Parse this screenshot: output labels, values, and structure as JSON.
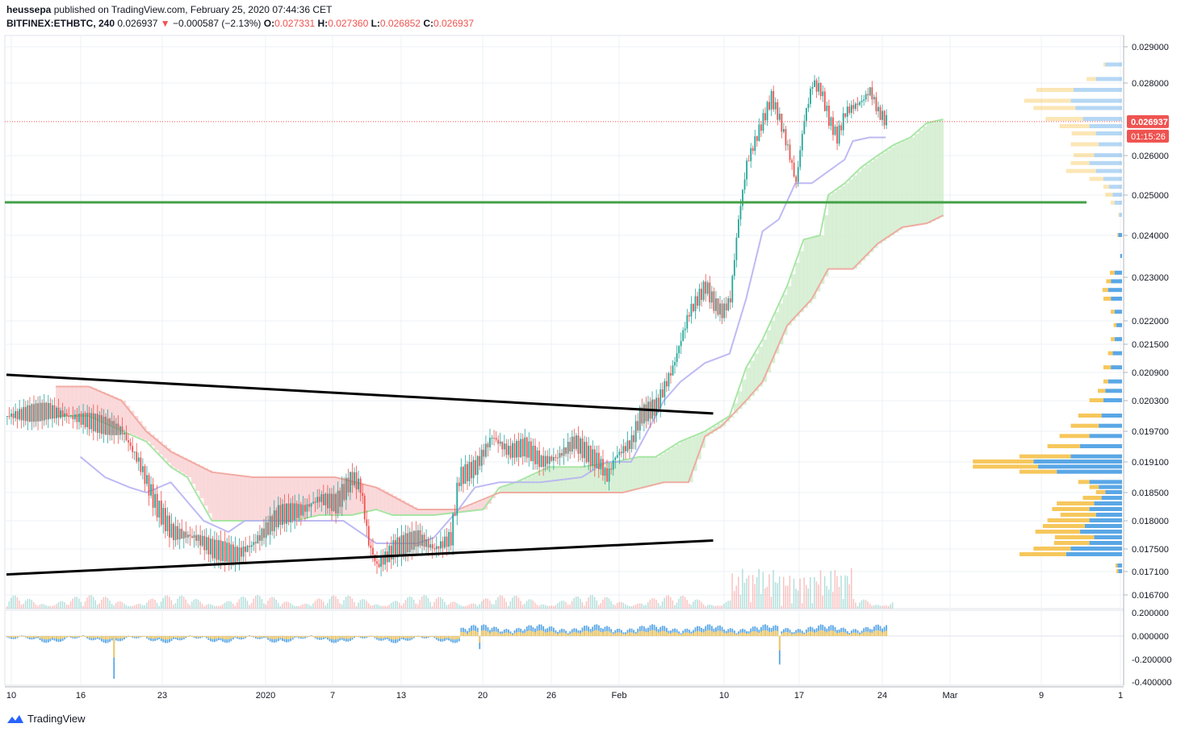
{
  "header": {
    "author": "heussepa",
    "published_text": "published on TradingView.com, February 25, 2020 07:44:36 CET",
    "symbol": "BITFINEX:ETHBTC, 240",
    "last": "0.026937",
    "change_arrow": "▼",
    "change": "−0.000587 (−2.13%)",
    "o_label": "O:",
    "o_value": "0.027331",
    "h_label": "H:",
    "h_value": "0.027360",
    "l_label": "L:",
    "l_value": "0.026852",
    "c_label": "C:",
    "c_value": "0.026937"
  },
  "footer": {
    "brand": "TradingView"
  },
  "colors": {
    "up": "#26a69a",
    "down": "#ef5350",
    "grid": "#eef1f5",
    "base_line": "#b7b3f2",
    "span_a": "#9fe39b",
    "span_b": "#f0a49a",
    "cloud_up": "#cfeccc",
    "cloud_down": "#f9d0d2",
    "hline": "#43a047",
    "vp_up": "#5aa7e6",
    "vp_down": "#f6c75c"
  },
  "chart_data": {
    "type": "candlestick",
    "symbol": "ETHBTC",
    "timeframe": "240",
    "last_price_label": "0.026937",
    "countdown_label": "01:15:26",
    "horizontal_level": 0.02482,
    "y_ticks": [
      "0.029000",
      "0.028000",
      "0.026000",
      "0.025000",
      "0.024000",
      "0.023000",
      "0.022000",
      "0.021500",
      "0.020900",
      "0.020300",
      "0.019700",
      "0.019100",
      "0.018500",
      "0.018000",
      "0.017500",
      "0.017100",
      "0.016700"
    ],
    "x_ticks": [
      "10",
      "16",
      "23",
      "2020",
      "7",
      "13",
      "20",
      "26",
      "Feb",
      "10",
      "17",
      "24",
      "Mar",
      "9",
      "1"
    ],
    "osc_ticks": [
      "0.200000",
      "0.000000",
      "-0.200000",
      "-0.400000"
    ],
    "series_close_path": [
      [
        0,
        0.02
      ],
      [
        5,
        0.0201
      ],
      [
        10,
        0.0199
      ],
      [
        14,
        0.0197
      ],
      [
        16,
        0.0191
      ],
      [
        18,
        0.0183
      ],
      [
        20,
        0.0178
      ],
      [
        23,
        0.0177
      ],
      [
        25,
        0.0175
      ],
      [
        28,
        0.0174
      ],
      [
        30,
        0.0176
      ],
      [
        33,
        0.0181
      ],
      [
        36,
        0.0182
      ],
      [
        38,
        0.0184
      ],
      [
        40,
        0.0183
      ],
      [
        42,
        0.0188
      ],
      [
        43,
        0.0186
      ],
      [
        44,
        0.0176
      ],
      [
        45,
        0.0172
      ],
      [
        47,
        0.0175
      ],
      [
        50,
        0.0177
      ],
      [
        52,
        0.0175
      ],
      [
        54,
        0.0177
      ],
      [
        55,
        0.0188
      ],
      [
        57,
        0.019
      ],
      [
        59,
        0.0196
      ],
      [
        61,
        0.0193
      ],
      [
        63,
        0.0194
      ],
      [
        65,
        0.0191
      ],
      [
        67,
        0.0192
      ],
      [
        69,
        0.0195
      ],
      [
        71,
        0.0192
      ],
      [
        72,
        0.0191
      ],
      [
        73,
        0.0188
      ],
      [
        74,
        0.0192
      ],
      [
        76,
        0.0195
      ],
      [
        77,
        0.02
      ],
      [
        79,
        0.0202
      ],
      [
        81,
        0.021
      ],
      [
        83,
        0.0222
      ],
      [
        85,
        0.0228
      ],
      [
        86,
        0.0224
      ],
      [
        87,
        0.0222
      ],
      [
        88,
        0.0225
      ],
      [
        89,
        0.0244
      ],
      [
        90,
        0.0258
      ],
      [
        91,
        0.0264
      ],
      [
        93,
        0.0276
      ],
      [
        94,
        0.027
      ],
      [
        95,
        0.0262
      ],
      [
        96,
        0.0253
      ],
      [
        97,
        0.027
      ],
      [
        98,
        0.028
      ],
      [
        99,
        0.0278
      ],
      [
        100,
        0.027
      ],
      [
        101,
        0.0265
      ],
      [
        102,
        0.0272
      ],
      [
        104,
        0.0275
      ],
      [
        105,
        0.0278
      ],
      [
        106,
        0.0272
      ],
      [
        107,
        0.02694
      ]
    ],
    "ichimoku": {
      "base_line": [
        [
          9,
          0.0192
        ],
        [
          12,
          0.0188
        ],
        [
          15,
          0.0186
        ],
        [
          17,
          0.0185
        ],
        [
          20,
          0.0187
        ],
        [
          24,
          0.018
        ],
        [
          27,
          0.0178
        ],
        [
          29,
          0.018
        ],
        [
          33,
          0.018
        ],
        [
          38,
          0.018
        ],
        [
          41,
          0.018
        ],
        [
          45,
          0.0176
        ],
        [
          50,
          0.0176
        ],
        [
          52,
          0.0177
        ],
        [
          55,
          0.0182
        ],
        [
          57,
          0.0186
        ],
        [
          60,
          0.0187
        ],
        [
          65,
          0.0187
        ],
        [
          70,
          0.0188
        ],
        [
          73,
          0.0191
        ],
        [
          76,
          0.0191
        ],
        [
          80,
          0.0203
        ],
        [
          82,
          0.0207
        ],
        [
          85,
          0.0211
        ],
        [
          88,
          0.0213
        ],
        [
          90,
          0.0225
        ],
        [
          92,
          0.0241
        ],
        [
          94,
          0.0244
        ],
        [
          96,
          0.0253
        ],
        [
          98,
          0.0253
        ],
        [
          100,
          0.0256
        ],
        [
          102,
          0.0259
        ],
        [
          103,
          0.0264
        ],
        [
          105,
          0.0265
        ],
        [
          107,
          0.0265
        ]
      ],
      "span_a": [
        [
          6,
          0.02
        ],
        [
          10,
          0.02
        ],
        [
          17,
          0.0195
        ],
        [
          20,
          0.019
        ],
        [
          22,
          0.0188
        ],
        [
          25,
          0.018
        ],
        [
          30,
          0.018
        ],
        [
          35,
          0.018
        ],
        [
          38,
          0.0181
        ],
        [
          42,
          0.0181
        ],
        [
          45,
          0.0182
        ],
        [
          47,
          0.0181
        ],
        [
          52,
          0.0181
        ],
        [
          58,
          0.0182
        ],
        [
          60,
          0.0186
        ],
        [
          62,
          0.0187
        ],
        [
          66,
          0.019
        ],
        [
          70,
          0.019
        ],
        [
          74,
          0.0191
        ],
        [
          77,
          0.0192
        ],
        [
          79,
          0.0192
        ],
        [
          82,
          0.0195
        ],
        [
          85,
          0.0197
        ],
        [
          88,
          0.02
        ],
        [
          90,
          0.021
        ],
        [
          92,
          0.0216
        ],
        [
          95,
          0.0228
        ],
        [
          97,
          0.0239
        ],
        [
          99,
          0.024
        ],
        [
          100,
          0.025
        ],
        [
          102,
          0.0253
        ],
        [
          104,
          0.0257
        ],
        [
          106,
          0.026
        ],
        [
          108,
          0.0263
        ],
        [
          110,
          0.0265
        ],
        [
          112,
          0.0269
        ],
        [
          114,
          0.027
        ]
      ],
      "span_b": [
        [
          6,
          0.0206
        ],
        [
          10,
          0.0206
        ],
        [
          14,
          0.0203
        ],
        [
          17,
          0.0197
        ],
        [
          20,
          0.0193
        ],
        [
          25,
          0.0189
        ],
        [
          30,
          0.0188
        ],
        [
          40,
          0.0188
        ],
        [
          45,
          0.0186
        ],
        [
          50,
          0.0182
        ],
        [
          55,
          0.0182
        ],
        [
          60,
          0.0185
        ],
        [
          65,
          0.0185
        ],
        [
          75,
          0.0185
        ],
        [
          80,
          0.0187
        ],
        [
          83,
          0.0187
        ],
        [
          85,
          0.0196
        ],
        [
          87,
          0.0198
        ],
        [
          90,
          0.0203
        ],
        [
          92,
          0.0207
        ],
        [
          95,
          0.0219
        ],
        [
          98,
          0.0225
        ],
        [
          100,
          0.0232
        ],
        [
          103,
          0.0232
        ],
        [
          106,
          0.0238
        ],
        [
          109,
          0.0242
        ],
        [
          112,
          0.0243
        ],
        [
          114,
          0.0245
        ]
      ]
    },
    "trendlines": [
      {
        "x1": 0,
        "y1": 0.02085,
        "x2": 86,
        "y2": 0.02005
      },
      {
        "x1": 0,
        "y1": 0.01705,
        "x2": 86,
        "y2": 0.01765
      }
    ],
    "volume_profile": [
      [
        0.0285,
        0.18,
        0.02
      ],
      [
        0.0281,
        0.28,
        0.1
      ],
      [
        0.0278,
        0.52,
        0.4
      ],
      [
        0.0275,
        0.55,
        0.5
      ],
      [
        0.0273,
        0.5,
        0.45
      ],
      [
        0.027,
        0.42,
        0.4
      ],
      [
        0.0268,
        0.35,
        0.32
      ],
      [
        0.0266,
        0.28,
        0.26
      ],
      [
        0.0263,
        0.25,
        0.3
      ],
      [
        0.026,
        0.3,
        0.22
      ],
      [
        0.0258,
        0.35,
        0.2
      ],
      [
        0.0256,
        0.28,
        0.32
      ],
      [
        0.0254,
        0.2,
        0.15
      ],
      [
        0.0252,
        0.14,
        0.06
      ],
      [
        0.025,
        0.1,
        0.08
      ],
      [
        0.0248,
        0.08,
        0.04
      ],
      [
        0.0245,
        0.03,
        0.01
      ],
      [
        0.024,
        0.04,
        0.01
      ],
      [
        0.0235,
        0.02,
        0.0
      ],
      [
        0.0231,
        0.08,
        0.05
      ],
      [
        0.0229,
        0.12,
        0.05
      ],
      [
        0.0227,
        0.15,
        0.06
      ],
      [
        0.0225,
        0.12,
        0.08
      ],
      [
        0.0222,
        0.08,
        0.04
      ],
      [
        0.0219,
        0.06,
        0.03
      ],
      [
        0.0216,
        0.08,
        0.04
      ],
      [
        0.0213,
        0.1,
        0.05
      ],
      [
        0.021,
        0.12,
        0.08
      ],
      [
        0.0207,
        0.15,
        0.05
      ],
      [
        0.0205,
        0.18,
        0.08
      ],
      [
        0.0203,
        0.2,
        0.15
      ],
      [
        0.02,
        0.22,
        0.25
      ],
      [
        0.0198,
        0.25,
        0.3
      ],
      [
        0.0196,
        0.35,
        0.32
      ],
      [
        0.0194,
        0.45,
        0.35
      ],
      [
        0.0192,
        0.55,
        0.55
      ],
      [
        0.0191,
        0.95,
        0.65
      ],
      [
        0.019,
        0.9,
        0.7
      ],
      [
        0.0189,
        0.7,
        0.4
      ],
      [
        0.0187,
        0.35,
        0.12
      ],
      [
        0.0186,
        0.25,
        0.1
      ],
      [
        0.0185,
        0.18,
        0.1
      ],
      [
        0.0184,
        0.22,
        0.2
      ],
      [
        0.0183,
        0.3,
        0.4
      ],
      [
        0.0182,
        0.35,
        0.4
      ],
      [
        0.0181,
        0.28,
        0.38
      ],
      [
        0.018,
        0.35,
        0.45
      ],
      [
        0.0179,
        0.4,
        0.45
      ],
      [
        0.0178,
        0.45,
        0.48
      ],
      [
        0.0177,
        0.3,
        0.42
      ],
      [
        0.0176,
        0.35,
        0.38
      ],
      [
        0.0175,
        0.55,
        0.4
      ],
      [
        0.0174,
        0.6,
        0.5
      ],
      [
        0.0172,
        0.05,
        0.02
      ],
      [
        0.0171,
        0.04,
        0.02
      ]
    ],
    "oscillator_range": [
      -0.4,
      0.2
    ]
  }
}
